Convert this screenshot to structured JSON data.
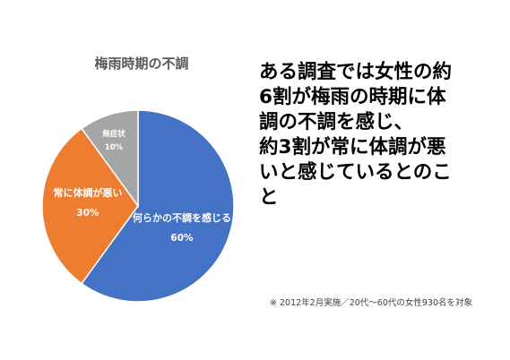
{
  "chart_data": {
    "type": "pie",
    "title": "梅雨時期の不調",
    "slices": [
      {
        "label": "何らかの不調を感じる",
        "value": 60,
        "value_label": "60%",
        "color": "#4472c4"
      },
      {
        "label": "常に体調が悪い",
        "value": 30,
        "value_label": "30%",
        "color": "#ed7d31"
      },
      {
        "label": "無症状",
        "value": 10,
        "value_label": "10%",
        "color": "#a5a5a5"
      }
    ],
    "start_angle_deg": 0,
    "direction": "clockwise"
  },
  "headline": {
    "lines": [
      "ある調査では女性の約",
      "6割が梅雨の時期に体",
      "調の不調を感じ、",
      "約3割が常に体調が悪",
      "いと感じているとのこ",
      "と"
    ]
  },
  "footnote": "※ 2012年2月実施／20代〜60代の女性930名を対象"
}
